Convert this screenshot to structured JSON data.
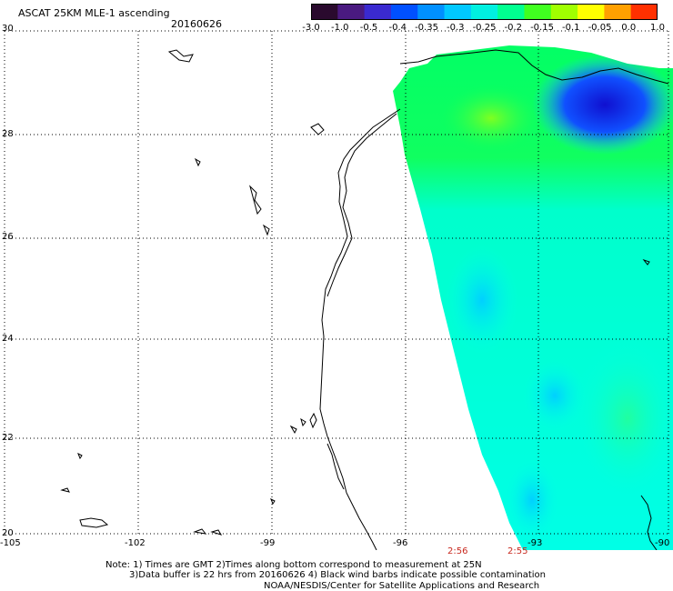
{
  "header": {
    "title": "ASCAT 25KM MLE-1 ascending",
    "date": "20160626"
  },
  "colorbar": {
    "labels": [
      "-3.0",
      "-1.0",
      "-0.5",
      "-0.4",
      "-0.35",
      "-0.3",
      "-0.25",
      "-0.2",
      "-0.15",
      "-0.1",
      "-0.05",
      "0.0",
      "1.0"
    ],
    "colors": [
      "#2a0a2e",
      "#4a1a80",
      "#3a2ad0",
      "#0050ff",
      "#0090ff",
      "#00c8ff",
      "#00f0e0",
      "#00ff90",
      "#40ff20",
      "#a0ff00",
      "#ffff00",
      "#ffa000",
      "#ff3000"
    ]
  },
  "axes": {
    "lat_labels": [
      "30",
      "28",
      "26",
      "24",
      "22",
      "20"
    ],
    "lon_labels": [
      "-105",
      "-102",
      "-99",
      "-96",
      "-93",
      "-90"
    ]
  },
  "pass_times": [
    "2:56",
    "2:55"
  ],
  "notes": {
    "line1": "Note: 1) Times are GMT 2)Times along bottom correspond to measurement at 25N",
    "line2": "3)Data buffer is 22 hrs from 20160626 4) Black wind barbs indicate possible contamination",
    "line3": "NOAA/NESDIS/Center for Satellite Applications and Research"
  },
  "colors": {
    "time_text": "#c8281e",
    "swath_cyan": "#00ffee",
    "swath_green": "#00ff66",
    "swath_blue": "#1030ff"
  }
}
